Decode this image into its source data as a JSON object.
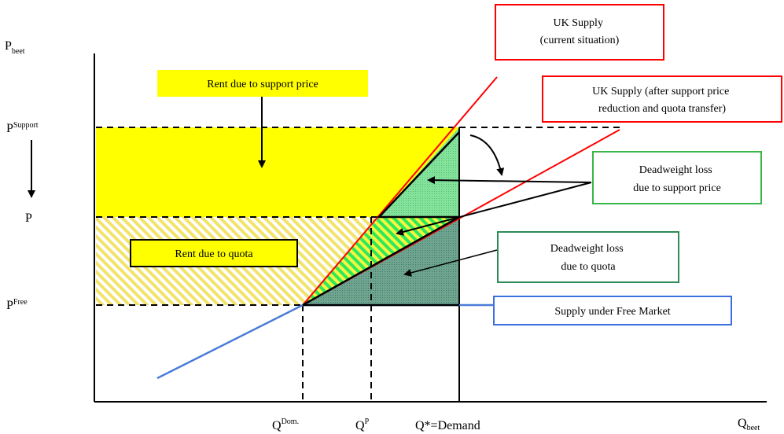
{
  "axes": {
    "y_main": "P",
    "y_sub": "beet",
    "x_main": "Q",
    "x_sub": "beet"
  },
  "y_ticks": {
    "p_support": {
      "main": "P",
      "sup": "Support"
    },
    "p": {
      "main": "P"
    },
    "p_free": {
      "main": "P",
      "sup": "Free"
    }
  },
  "x_ticks": {
    "q_dom": {
      "main": "Q",
      "sup": "Dom."
    },
    "q_p": {
      "main": "Q",
      "sup": "P"
    },
    "q_star": {
      "main": "Q*=Demand"
    }
  },
  "callouts": {
    "uk_supply_current": [
      "UK Supply",
      "(current situation)"
    ],
    "uk_supply_after": [
      "UK Supply (after support price",
      "reduction and quota transfer)"
    ],
    "dwl_support": [
      "Deadweight loss",
      "due to support price"
    ],
    "dwl_quota": [
      "Deadweight loss",
      "due to quota"
    ],
    "free_market": "Supply under Free Market",
    "rent_support": "Rent due to support price",
    "rent_quota": "Rent due to quota"
  },
  "colors": {
    "uk_supply_line": "#ff0000",
    "free_market_line": "#4a7bd8",
    "rent_yellow": "#ffff00",
    "green": "#7ddc8e",
    "dark_teal": "#5f9e86",
    "green_box_border": "#39b54a",
    "teal_box_border": "#2e8b57",
    "blue_box_border": "#3c6fe0"
  }
}
